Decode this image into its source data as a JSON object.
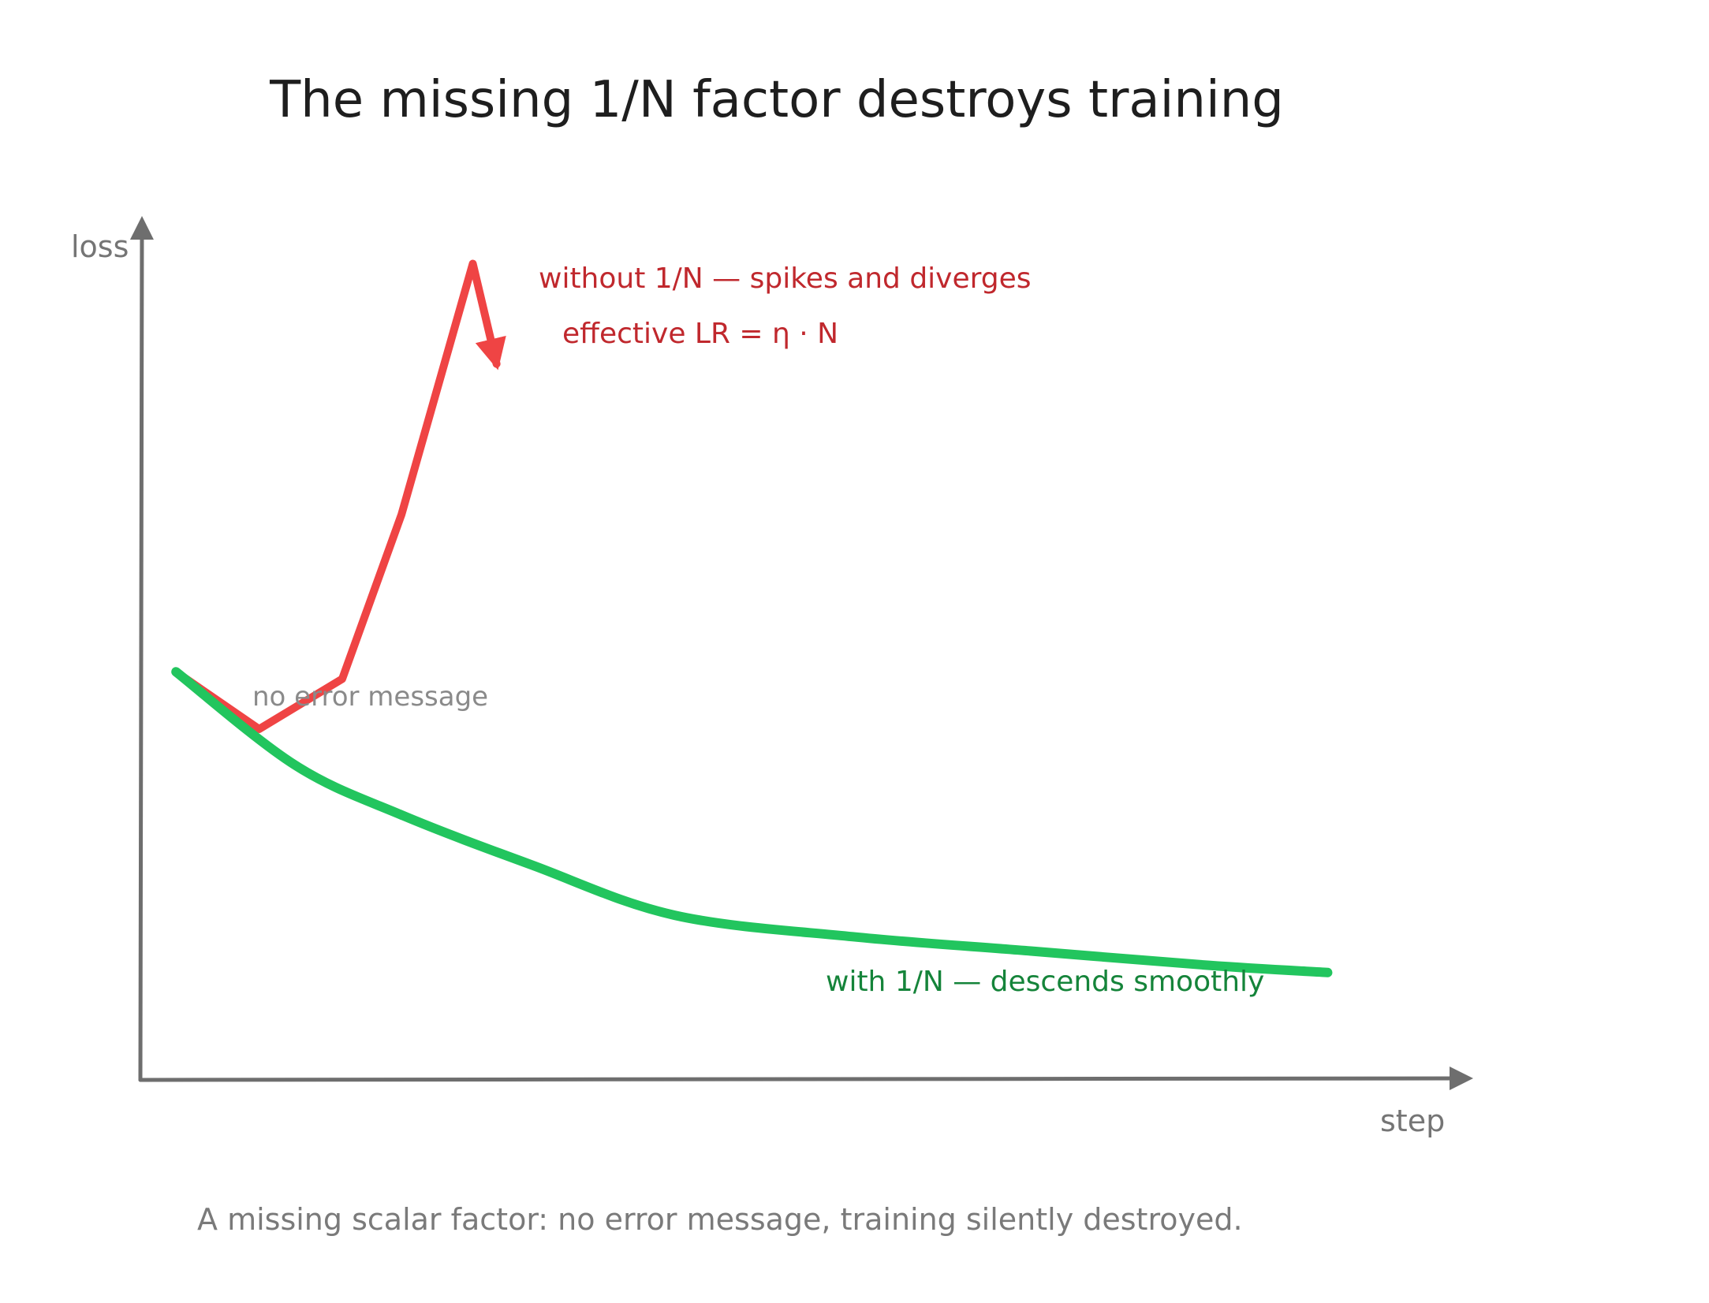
{
  "chart_data": {
    "type": "line",
    "title": "The missing 1/N factor destroys training",
    "xlabel": "step",
    "ylabel": "loss",
    "caption": "A missing scalar factor: no error message, training silently destroyed.",
    "xlim": [
      0,
      1.1
    ],
    "ylim": [
      0,
      1.2
    ],
    "grid": false,
    "series": [
      {
        "name": "without 1/N — spikes and diverges",
        "color": "#ef4444",
        "x": [
          0.03,
          0.1,
          0.17,
          0.22,
          0.28,
          0.3
        ],
        "y": [
          0.57,
          0.49,
          0.56,
          0.79,
          1.14,
          1.0
        ]
      },
      {
        "name": "with 1/N — descends smoothly",
        "color": "#22c55e",
        "x": [
          0.03,
          0.13,
          0.22,
          0.33,
          0.45,
          0.6,
          0.75,
          0.9,
          1.0
        ],
        "y": [
          0.57,
          0.44,
          0.37,
          0.3,
          0.23,
          0.2,
          0.18,
          0.16,
          0.15
        ]
      }
    ],
    "annotations": [
      {
        "text": "without 1/N — spikes and diverges",
        "color": "#c0282d"
      },
      {
        "text": "effective LR = η · N",
        "color": "#c0282d"
      },
      {
        "text": "no error message",
        "color": "#8a8a8a"
      },
      {
        "text": "with 1/N — descends smoothly",
        "color": "#15843a"
      }
    ]
  }
}
